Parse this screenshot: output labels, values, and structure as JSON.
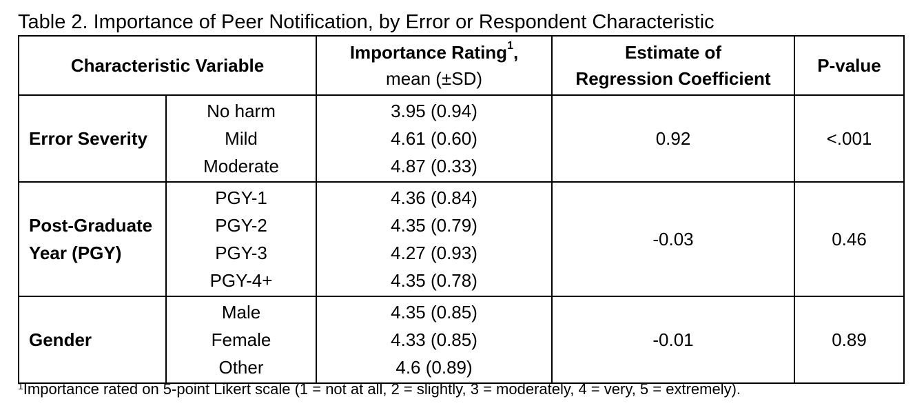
{
  "caption": "Table 2. Importance of Peer Notification, by Error or Respondent Characteristic",
  "headers": {
    "characteristic": "Characteristic Variable",
    "importance_main": "Importance Rating",
    "importance_sup": "1",
    "importance_comma": ",",
    "importance_sub": "mean (±SD)",
    "estimate_line1": "Estimate of",
    "estimate_line2": "Regression Coefficient",
    "pvalue": "P-value"
  },
  "groups": [
    {
      "label": "Error Severity",
      "categories": [
        "No harm",
        "Mild",
        "Moderate"
      ],
      "ratings": [
        "3.95 (0.94)",
        "4.61 (0.60)",
        "4.87 (0.33)"
      ],
      "coefficient": "0.92",
      "pvalue": "<.001"
    },
    {
      "label": "Post-Graduate Year (PGY)",
      "categories": [
        "PGY-1",
        "PGY-2",
        "PGY-3",
        "PGY-4+"
      ],
      "ratings": [
        "4.36 (0.84)",
        "4.35 (0.79)",
        "4.27 (0.93)",
        "4.35 (0.78)"
      ],
      "coefficient": "-0.03",
      "pvalue": "0.46"
    },
    {
      "label": "Gender",
      "categories": [
        "Male",
        "Female",
        "Other"
      ],
      "ratings": [
        "4.35 (0.85)",
        "4.33 (0.85)",
        "4.6 (0.89)"
      ],
      "coefficient": "-0.01",
      "pvalue": "0.89"
    }
  ],
  "footnote": {
    "marker": "1",
    "text": "Importance rated on 5-point Likert scale (1 = not at all, 2 = slightly, 3 = moderately, 4 = very, 5 = extremely)."
  }
}
